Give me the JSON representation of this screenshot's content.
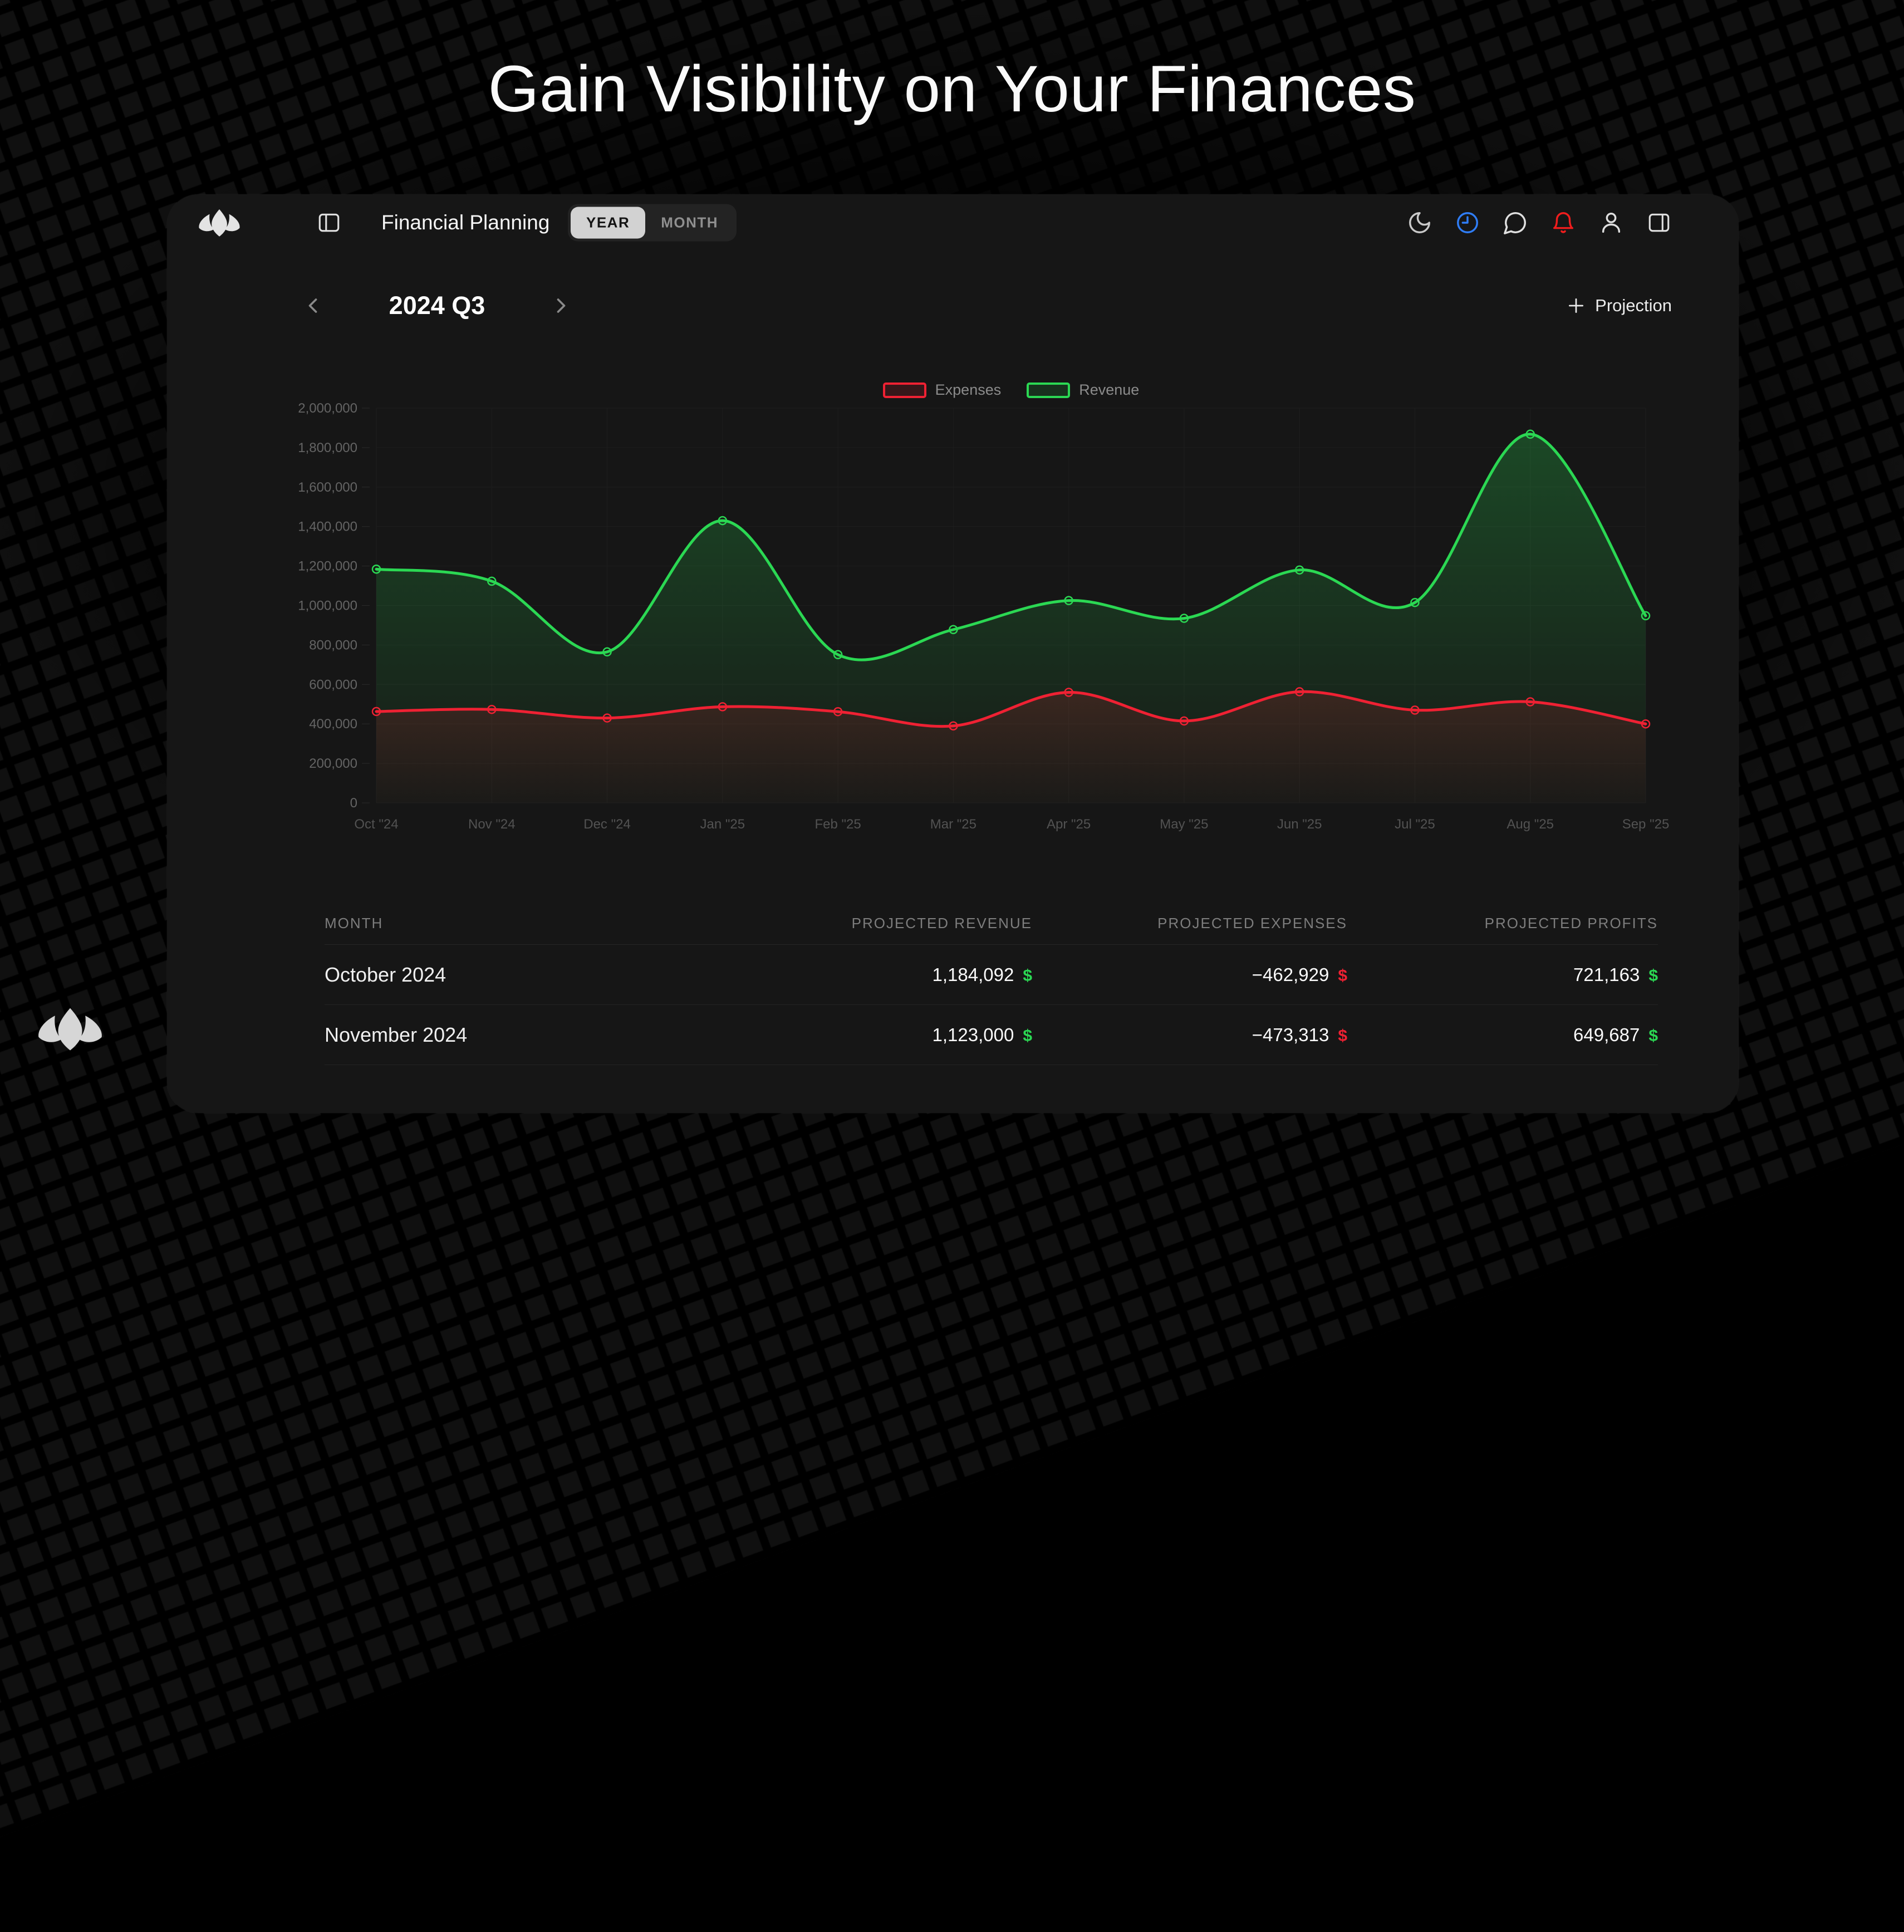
{
  "hero": {
    "title": "Gain Visibility on Your Finances"
  },
  "navbar": {
    "title": "Financial Planning",
    "toggle": {
      "year": "YEAR",
      "month": "MONTH",
      "selected": "YEAR"
    },
    "icons": [
      "sidebar-toggle",
      "dark-mode-moon",
      "history-clock",
      "chat",
      "notifications-bell",
      "account",
      "panel-right"
    ]
  },
  "period": {
    "label": "2024 Q3"
  },
  "toolbar": {
    "add_projection": "Projection"
  },
  "chart_data": {
    "type": "line",
    "x": [
      "Oct \"24",
      "Nov \"24",
      "Dec \"24",
      "Jan \"25",
      "Feb \"25",
      "Mar \"25",
      "Apr \"25",
      "May \"25",
      "Jun \"25",
      "Jul \"25",
      "Aug \"25",
      "Sep \"25"
    ],
    "series": [
      {
        "name": "Expenses",
        "color": "#ef2133",
        "values": [
          462929,
          473313,
          430000,
          487000,
          462000,
          390000,
          560000,
          415000,
          563000,
          470000,
          512000,
          400000
        ]
      },
      {
        "name": "Revenue",
        "color": "#2bd853",
        "values": [
          1184092,
          1123000,
          765000,
          1430000,
          751000,
          878000,
          1025000,
          935000,
          1180000,
          1015000,
          1868000,
          948000
        ]
      }
    ],
    "ylim": [
      0,
      2000000
    ],
    "ytick_step": 200000,
    "grid": true,
    "legend_position": "top-center"
  },
  "table": {
    "headers": [
      "MONTH",
      "PROJECTED REVENUE",
      "PROJECTED EXPENSES",
      "PROJECTED PROFITS"
    ],
    "currency": "$",
    "rows": [
      {
        "month": "October 2024",
        "revenue": "1,184,092",
        "expenses": "−462,929",
        "profits": "721,163"
      },
      {
        "month": "November 2024",
        "revenue": "1,123,000",
        "expenses": "−473,313",
        "profits": "649,687"
      }
    ]
  },
  "colors": {
    "positive": "#2bd853",
    "negative": "#ef2133",
    "accent_blue": "#2f7df6",
    "card_bg": "#161616"
  }
}
